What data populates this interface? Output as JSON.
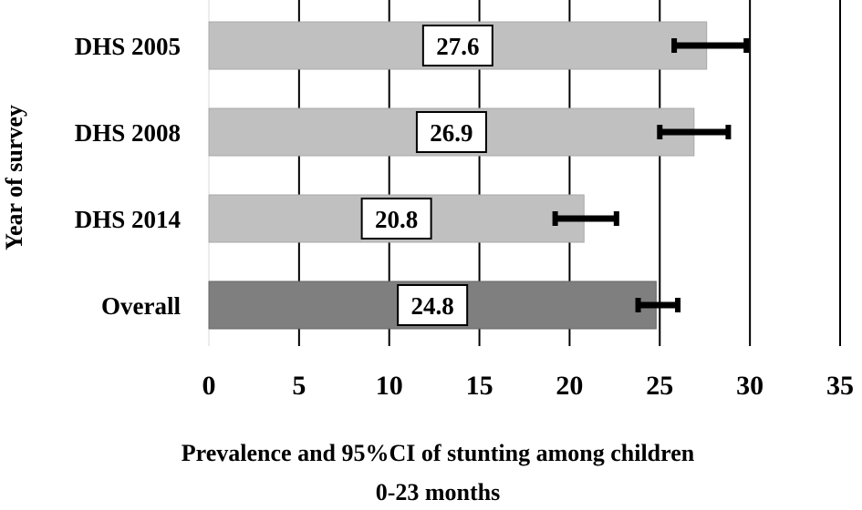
{
  "chart_data": {
    "type": "bar",
    "orientation": "horizontal",
    "categories": [
      "DHS 2005",
      "DHS 2008",
      "DHS 2014",
      "Overall"
    ],
    "values": [
      27.6,
      26.9,
      20.8,
      24.8
    ],
    "value_labels": [
      "27.6",
      "26.9",
      "20.8",
      "24.8"
    ],
    "ci_lower": [
      25.8,
      25.0,
      19.2,
      23.8
    ],
    "ci_upper": [
      29.8,
      28.8,
      22.6,
      26.0
    ],
    "xlim": [
      0,
      35
    ],
    "xticks": [
      "0",
      "5",
      "10",
      "15",
      "20",
      "25",
      "30",
      "35"
    ],
    "xlabel_line1": "Prevalence and 95%CI of stunting among children",
    "xlabel_line2": "0-23 months",
    "ylabel": "Year of survey",
    "grid": "vertical",
    "colors": {
      "bar": "#c0c0c0",
      "bar_border": "#a8a8a8",
      "overall_bar": "#7f7f7f",
      "overall_bar_border": "#666666",
      "error_bar": "#000000",
      "gridline": "#000000"
    }
  }
}
